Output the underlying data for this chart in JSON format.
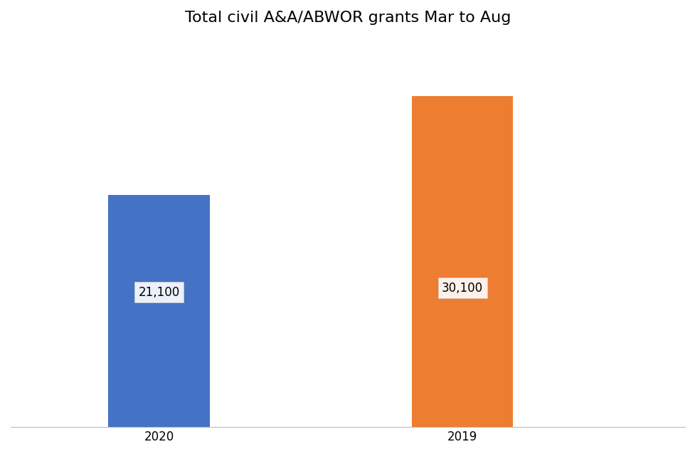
{
  "categories": [
    "2020",
    "2019"
  ],
  "values": [
    21100,
    30100
  ],
  "bar_colors": [
    "#4472C4",
    "#ED7D31"
  ],
  "labels": [
    "21,100",
    "30,100"
  ],
  "title": "Total civil A&A/ABWOR grants Mar to Aug",
  "title_fontsize": 16,
  "label_fontsize": 12,
  "tick_fontsize": 12,
  "background_color": "#FFFFFF",
  "ylim": [
    0,
    35000
  ],
  "bar_width": 0.15,
  "x_positions": [
    0.22,
    0.67
  ],
  "xlim": [
    0,
    1
  ]
}
